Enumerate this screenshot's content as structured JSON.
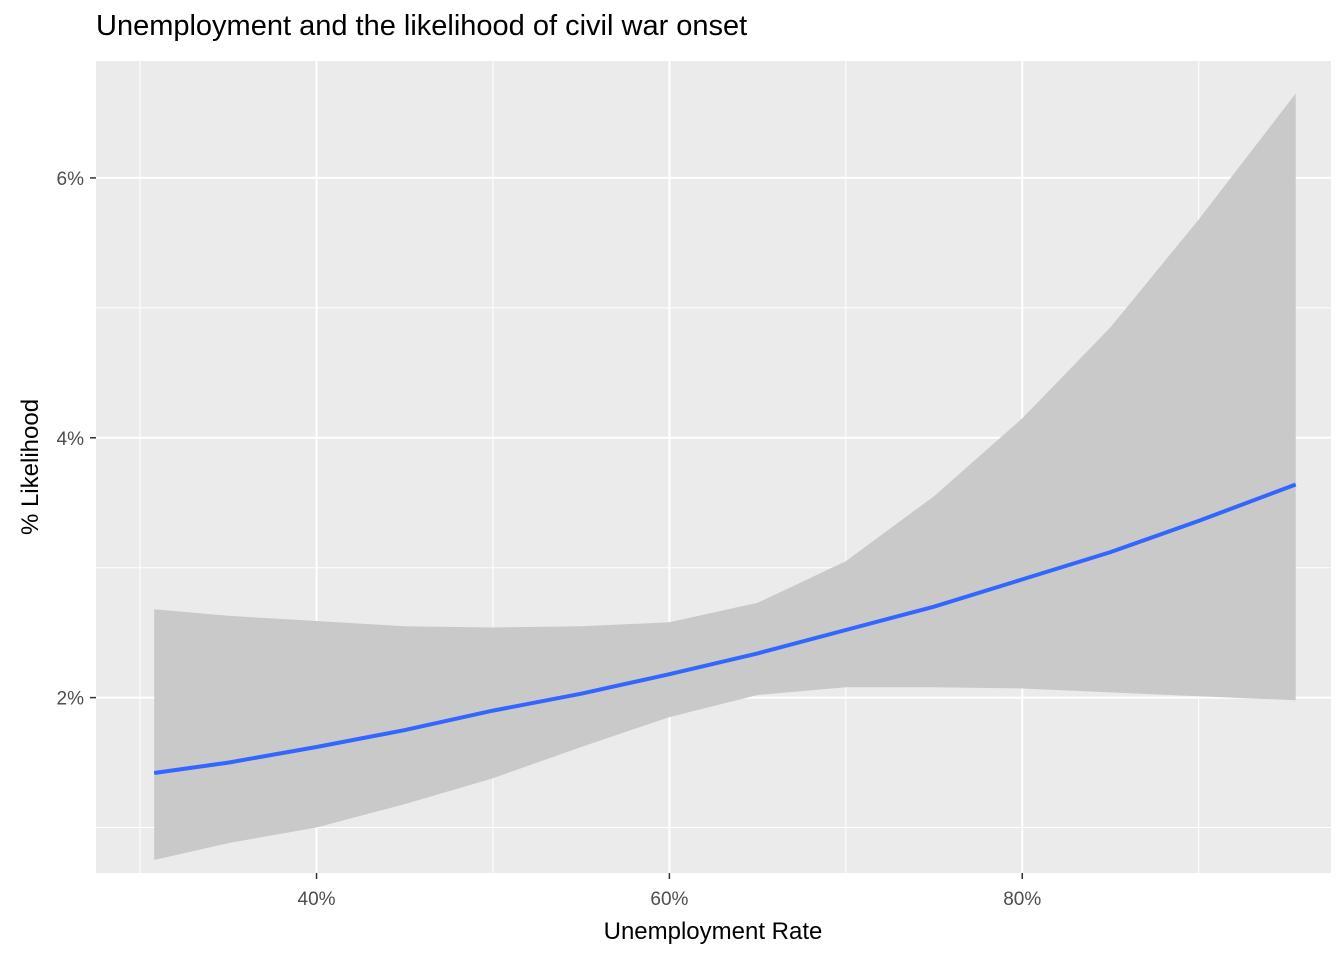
{
  "chart_data": {
    "type": "line",
    "title": "Unemployment and the likelihood of civil war onset",
    "xlabel": "Unemployment Rate",
    "ylabel": "% Likelihood",
    "xlim": [
      27.5,
      97.5
    ],
    "ylim": [
      0.65,
      6.9
    ],
    "x_ticks": [
      40,
      60,
      80
    ],
    "x_tick_labels": [
      "40%",
      "60%",
      "80%"
    ],
    "y_ticks": [
      2,
      4,
      6
    ],
    "y_tick_labels": [
      "2%",
      "4%",
      "6%"
    ],
    "grid": true,
    "legend": "none",
    "colors": {
      "panel": "#EBEBEB",
      "grid": "#FFFFFF",
      "ribbon": "#C9C9C9",
      "line": "#3366FF"
    },
    "series": [
      {
        "x": [
          30.8,
          35,
          40,
          45,
          50,
          55,
          60,
          65,
          70,
          75,
          80,
          85,
          90,
          95.5
        ],
        "fit": [
          1.42,
          1.5,
          1.62,
          1.75,
          1.9,
          2.03,
          2.18,
          2.34,
          2.52,
          2.7,
          2.91,
          3.12,
          3.36,
          3.64
        ],
        "lower": [
          0.75,
          0.88,
          1.0,
          1.18,
          1.38,
          1.62,
          1.85,
          2.02,
          2.08,
          2.08,
          2.07,
          2.04,
          2.01,
          1.98
        ],
        "upper": [
          2.68,
          2.63,
          2.59,
          2.55,
          2.54,
          2.55,
          2.58,
          2.73,
          3.05,
          3.55,
          4.15,
          4.85,
          5.68,
          6.65
        ]
      }
    ]
  }
}
